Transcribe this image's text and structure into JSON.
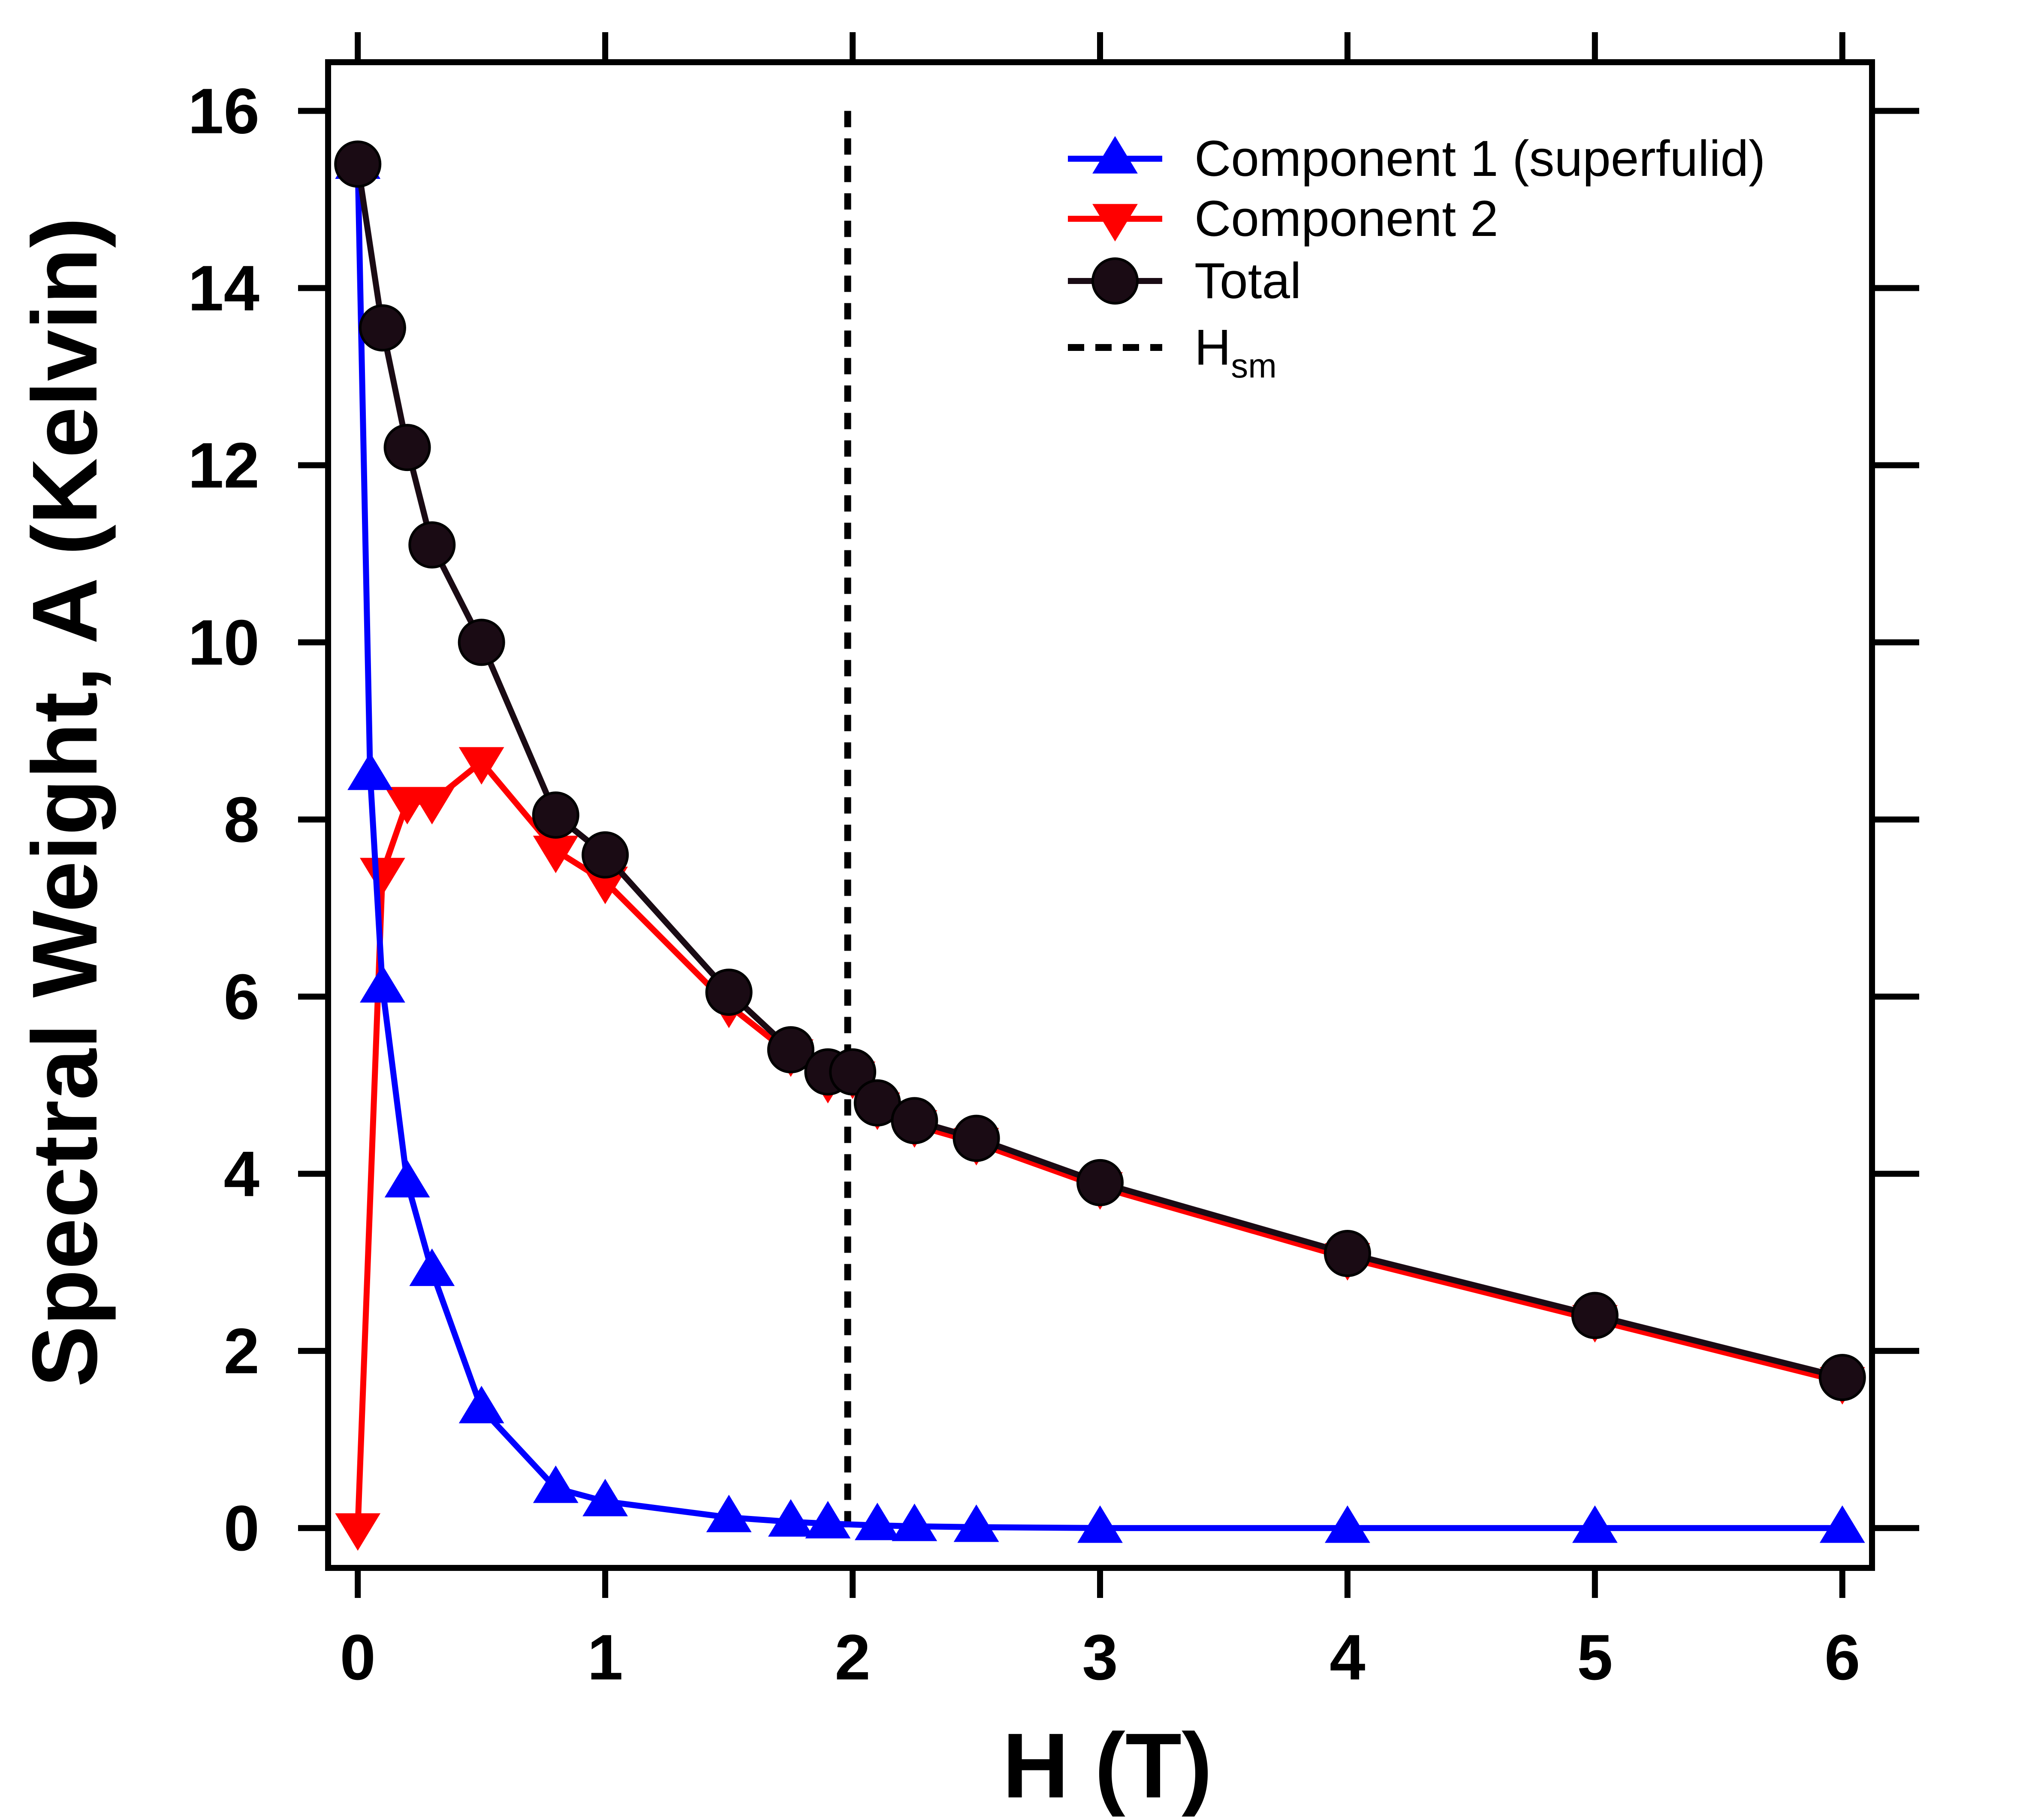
{
  "chart_data": {
    "type": "line",
    "title": "",
    "xlabel": "H (T)",
    "ylabel": "Spectral Weight, A (Kelvin)",
    "xlim": [
      -0.12,
      6.12
    ],
    "ylim": [
      -0.45,
      16.55
    ],
    "xticks": [
      0,
      1,
      2,
      3,
      4,
      5,
      6
    ],
    "yticks": [
      0,
      2,
      4,
      6,
      8,
      10,
      12,
      14,
      16
    ],
    "grid": false,
    "legend_position": "top-right",
    "vline": {
      "x": 1.98,
      "name": "H",
      "subscript": "sm",
      "color": "#000000"
    },
    "series": [
      {
        "name": "Component 1 (superfulid)",
        "color": "#0000ff",
        "marker": "triangle-up",
        "x": [
          0,
          0.05,
          0.1,
          0.2,
          0.3,
          0.5,
          0.8,
          1.0,
          1.5,
          1.75,
          1.9,
          2.1,
          2.25,
          2.5,
          3,
          4,
          5,
          6
        ],
        "y": [
          15.4,
          8.5,
          6.1,
          3.9,
          2.9,
          1.35,
          0.45,
          0.3,
          0.12,
          0.07,
          0.05,
          0.03,
          0.02,
          0.01,
          0.0,
          0.0,
          0.0,
          0.0
        ]
      },
      {
        "name": "Component 2",
        "color": "#ff0000",
        "marker": "triangle-down",
        "x": [
          0,
          0.1,
          0.2,
          0.3,
          0.5,
          0.8,
          1.0,
          1.5,
          1.75,
          1.9,
          2.0,
          2.1,
          2.25,
          2.5,
          3,
          4,
          5,
          6
        ],
        "y": [
          0.0,
          7.4,
          8.2,
          8.2,
          8.65,
          7.65,
          7.3,
          5.9,
          5.35,
          5.05,
          5.1,
          4.75,
          4.55,
          4.35,
          3.85,
          3.05,
          2.35,
          1.65
        ]
      },
      {
        "name": "Total",
        "color": "#1a0b14",
        "marker": "circle",
        "x": [
          0,
          0.1,
          0.2,
          0.3,
          0.5,
          0.8,
          1.0,
          1.5,
          1.75,
          1.9,
          2.0,
          2.1,
          2.25,
          2.5,
          3,
          4,
          5,
          6
        ],
        "y": [
          15.4,
          13.55,
          12.2,
          11.1,
          10.0,
          8.05,
          7.6,
          6.05,
          5.4,
          5.15,
          5.15,
          4.8,
          4.6,
          4.4,
          3.9,
          3.1,
          2.4,
          1.7
        ]
      }
    ]
  }
}
